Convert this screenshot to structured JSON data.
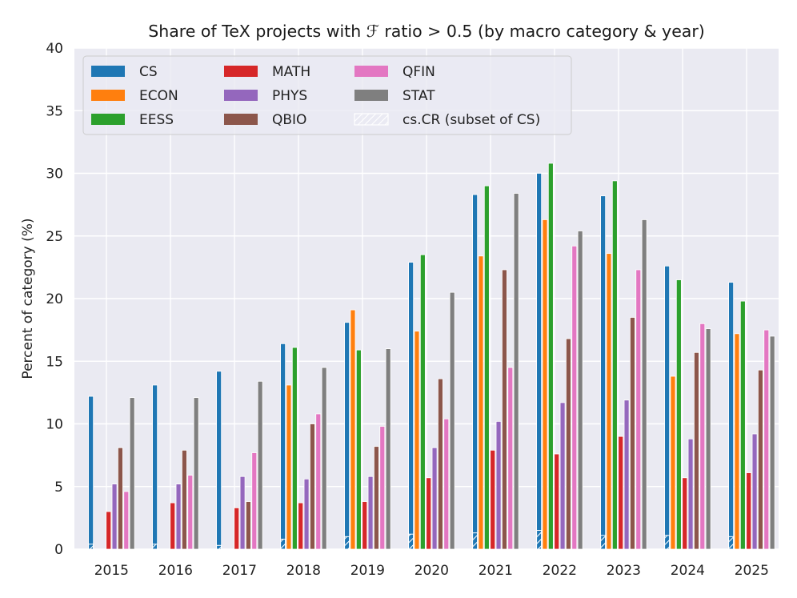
{
  "chart_data": {
    "type": "bar",
    "title": "Share of TeX projects with ℱ ratio > 0.5 (by macro category & year)",
    "xlabel": "",
    "ylabel": "Percent of category (%)",
    "ylim": [
      0,
      40
    ],
    "yticks": [
      0,
      5,
      10,
      15,
      20,
      25,
      30,
      35,
      40
    ],
    "grid": true,
    "legend_position": "top-left",
    "categories": [
      "2015",
      "2016",
      "2017",
      "2018",
      "2019",
      "2020",
      "2021",
      "2022",
      "2023",
      "2024",
      "2025"
    ],
    "series": [
      {
        "name": "CS",
        "color": "#1f77b4",
        "values": [
          12.2,
          13.1,
          14.2,
          16.4,
          18.1,
          22.9,
          28.3,
          30.0,
          28.2,
          22.6,
          21.3
        ]
      },
      {
        "name": "ECON",
        "color": "#ff7f0e",
        "values": [
          0,
          0,
          0,
          13.1,
          19.1,
          17.4,
          23.4,
          26.3,
          23.6,
          13.8,
          17.2
        ]
      },
      {
        "name": "EESS",
        "color": "#2ca02c",
        "values": [
          0,
          0,
          0,
          16.1,
          15.9,
          23.5,
          29.0,
          30.8,
          29.4,
          21.5,
          19.8
        ]
      },
      {
        "name": "MATH",
        "color": "#d62728",
        "values": [
          3.0,
          3.7,
          3.3,
          3.7,
          3.8,
          5.7,
          7.9,
          7.6,
          9.0,
          5.7,
          6.1
        ]
      },
      {
        "name": "PHYS",
        "color": "#9467bd",
        "values": [
          5.2,
          5.2,
          5.8,
          5.6,
          5.8,
          8.1,
          10.2,
          11.7,
          11.9,
          8.8,
          9.2
        ]
      },
      {
        "name": "QBIO",
        "color": "#8c564b",
        "values": [
          8.1,
          7.9,
          3.8,
          10.0,
          8.2,
          13.6,
          22.3,
          16.8,
          18.5,
          15.7,
          14.3
        ]
      },
      {
        "name": "QFIN",
        "color": "#e377c2",
        "values": [
          4.6,
          5.9,
          7.7,
          10.8,
          9.8,
          10.4,
          14.5,
          24.2,
          22.3,
          18.0,
          17.5
        ]
      },
      {
        "name": "STAT",
        "color": "#7f7f7f",
        "values": [
          12.1,
          12.1,
          13.4,
          14.5,
          16.0,
          20.5,
          28.4,
          25.4,
          26.3,
          17.6,
          17.0
        ]
      }
    ],
    "overlay_series": {
      "name": "cs.CR (subset of CS)",
      "values": [
        0.4,
        0.4,
        0.3,
        0.8,
        1.0,
        1.2,
        1.3,
        1.5,
        1.1,
        1.1,
        1.0
      ]
    },
    "legend": [
      "CS",
      "ECON",
      "EESS",
      "MATH",
      "PHYS",
      "QBIO",
      "QFIN",
      "STAT",
      "cs.CR (subset of CS)"
    ]
  }
}
